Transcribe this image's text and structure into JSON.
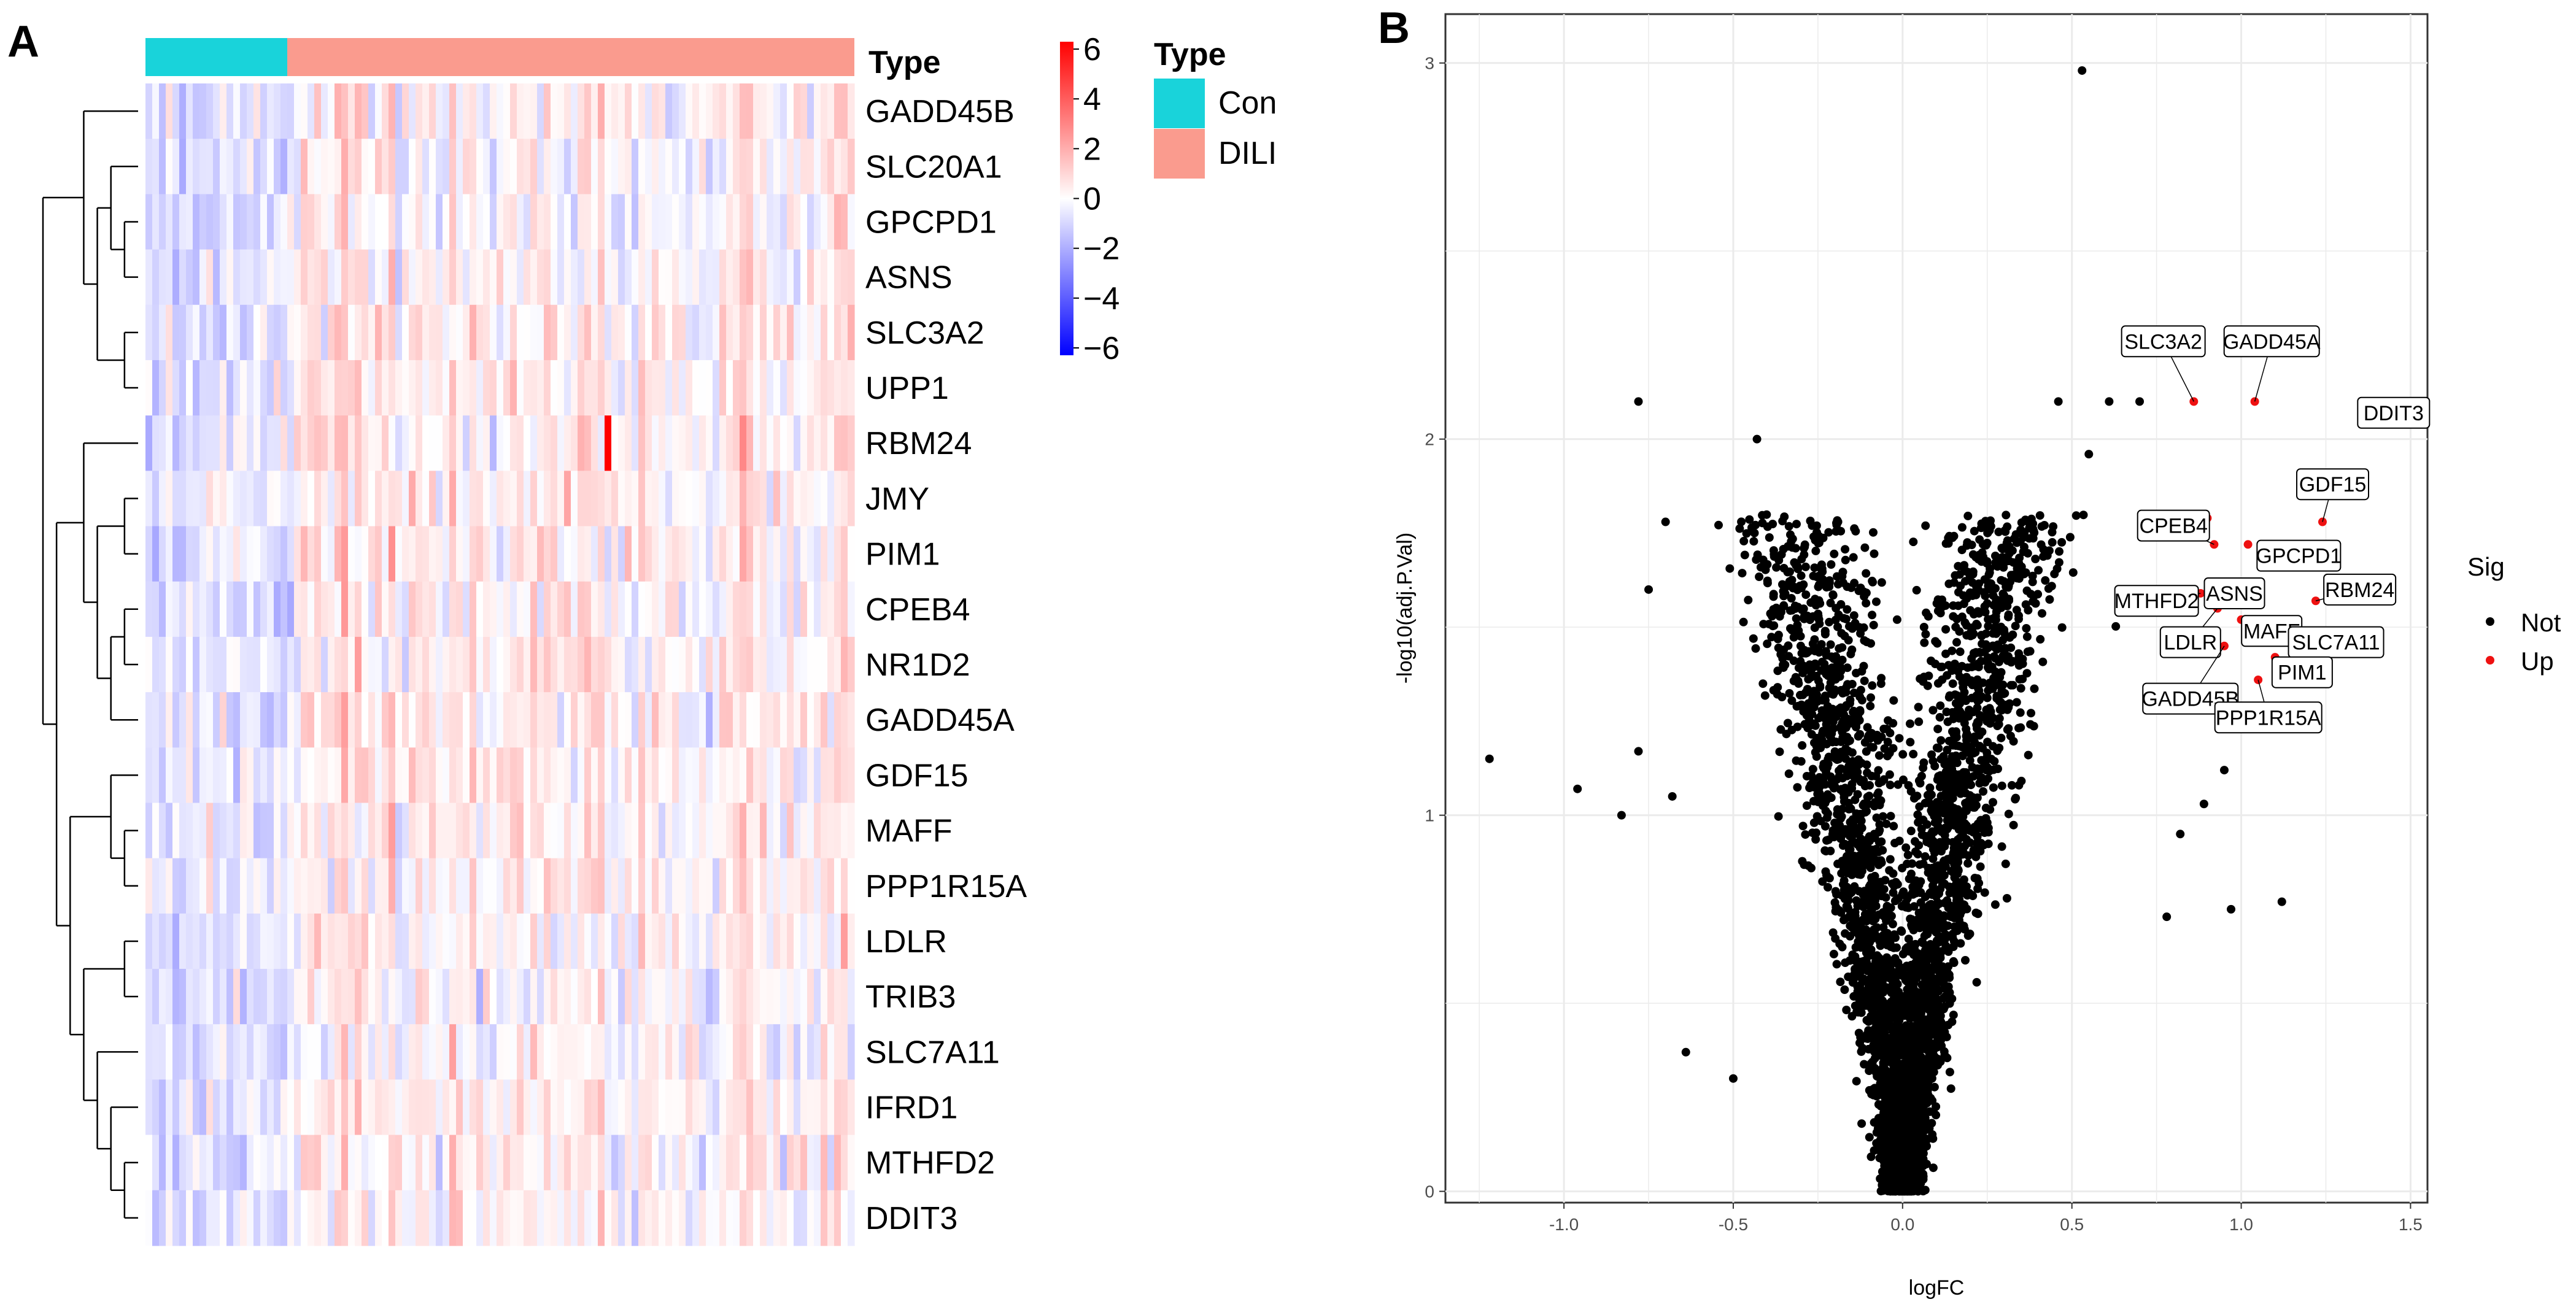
{
  "panels": {
    "a": "A",
    "b": "B"
  },
  "heatmap": {
    "type_title": "Type",
    "genes": [
      "GADD45B",
      "SLC20A1",
      "GPCPD1",
      "ASNS",
      "SLC3A2",
      "UPP1",
      "RBM24",
      "JMY",
      "PIM1",
      "CPEB4",
      "NR1D2",
      "GADD45A",
      "GDF15",
      "MAFF",
      "PPP1R15A",
      "LDLR",
      "TRIB3",
      "SLC7A11",
      "IFRD1",
      "MTHFD2",
      "DDIT3"
    ],
    "n_con": 21,
    "n_dili": 84,
    "colorbar": {
      "ticks": [
        "6",
        "4",
        "2",
        "0",
        "−2",
        "−4",
        "−6"
      ],
      "min": -6,
      "max": 6,
      "low_color": "#0000ff",
      "mid_color": "#ffffff",
      "high_color": "#ff0000"
    },
    "legend": {
      "title": "Type",
      "items": [
        {
          "label": "Con",
          "color": "#19d3da"
        },
        {
          "label": "DILI",
          "color": "#fa9b8e"
        }
      ]
    }
  },
  "chart_data": {
    "type": "scatter",
    "title": "",
    "xlabel": "logFC",
    "ylabel": "-log10(adj.P.Val)",
    "xlim": [
      -1.35,
      1.55
    ],
    "ylim": [
      -0.03,
      3.13
    ],
    "x_ticks": [
      "-1.0",
      "-0.5",
      "0.0",
      "0.5",
      "1.0",
      "1.5"
    ],
    "y_ticks": [
      "0",
      "1",
      "2",
      "3"
    ],
    "grid": true,
    "legend": {
      "title": "Sig",
      "items": [
        {
          "label": "Not",
          "color": "#000000"
        },
        {
          "label": "Up",
          "color": "#ee1111"
        }
      ],
      "placement": "right"
    },
    "up_points": [
      {
        "gene": "SLC3A2",
        "x": 0.86,
        "y": 2.1
      },
      {
        "gene": "GADD45A",
        "x": 1.04,
        "y": 2.1
      },
      {
        "gene": "DDIT3",
        "x": 1.4,
        "y": 2.1
      },
      {
        "gene": "GDF15",
        "x": 1.24,
        "y": 1.78
      },
      {
        "gene": "GPCPD1",
        "x": 1.07,
        "y": 1.66
      },
      {
        "gene": "CPEB4",
        "x": 0.92,
        "y": 1.72
      },
      {
        "gene": "ASNS",
        "x": 0.98,
        "y": 1.62
      },
      {
        "gene": "MTHFD2",
        "x": 0.88,
        "y": 1.59
      },
      {
        "gene": "RBM24",
        "x": 1.22,
        "y": 1.57
      },
      {
        "gene": "LDLR",
        "x": 0.93,
        "y": 1.55
      },
      {
        "gene": "MAFF",
        "x": 1.08,
        "y": 1.52
      },
      {
        "gene": "SLC7A11",
        "x": 1.15,
        "y": 1.5
      },
      {
        "gene": "GADD45B",
        "x": 0.95,
        "y": 1.45
      },
      {
        "gene": "PIM1",
        "x": 1.1,
        "y": 1.42
      },
      {
        "gene": "PPP1R15A",
        "x": 1.05,
        "y": 1.36
      },
      {
        "gene": "",
        "x": 0.82,
        "y": 1.79
      },
      {
        "gene": "",
        "x": 0.84,
        "y": 1.79
      },
      {
        "gene": "",
        "x": 0.86,
        "y": 1.79
      },
      {
        "gene": "",
        "x": 0.88,
        "y": 1.79
      },
      {
        "gene": "",
        "x": 0.9,
        "y": 1.79
      },
      {
        "gene": "",
        "x": 1.02,
        "y": 1.72
      },
      {
        "gene": "",
        "x": 1.04,
        "y": 1.57
      },
      {
        "gene": "",
        "x": 1.0,
        "y": 1.52
      }
    ],
    "not_outliers": [
      {
        "x": -0.78,
        "y": 2.1
      },
      {
        "x": -0.43,
        "y": 2.0
      },
      {
        "x": 0.53,
        "y": 2.98
      },
      {
        "x": 0.46,
        "y": 2.1
      },
      {
        "x": 0.61,
        "y": 2.1
      },
      {
        "x": 0.7,
        "y": 2.1
      },
      {
        "x": 0.55,
        "y": 1.96
      },
      {
        "x": -1.22,
        "y": 1.15
      },
      {
        "x": -0.96,
        "y": 1.07
      },
      {
        "x": -0.83,
        "y": 1.0
      },
      {
        "x": -0.78,
        "y": 1.17
      },
      {
        "x": -0.68,
        "y": 1.05
      },
      {
        "x": -0.64,
        "y": 0.37
      },
      {
        "x": -0.5,
        "y": 0.3
      },
      {
        "x": 1.12,
        "y": 0.77
      },
      {
        "x": 0.97,
        "y": 0.75
      },
      {
        "x": 0.78,
        "y": 0.73
      },
      {
        "x": 0.89,
        "y": 1.03
      },
      {
        "x": 1.05,
        "y": 1.25
      },
      {
        "x": 0.95,
        "y": 1.12
      },
      {
        "x": 0.82,
        "y": 0.95
      },
      {
        "x": -0.7,
        "y": 1.78
      },
      {
        "x": -0.75,
        "y": 1.6
      }
    ],
    "cloud_points": 4200
  }
}
